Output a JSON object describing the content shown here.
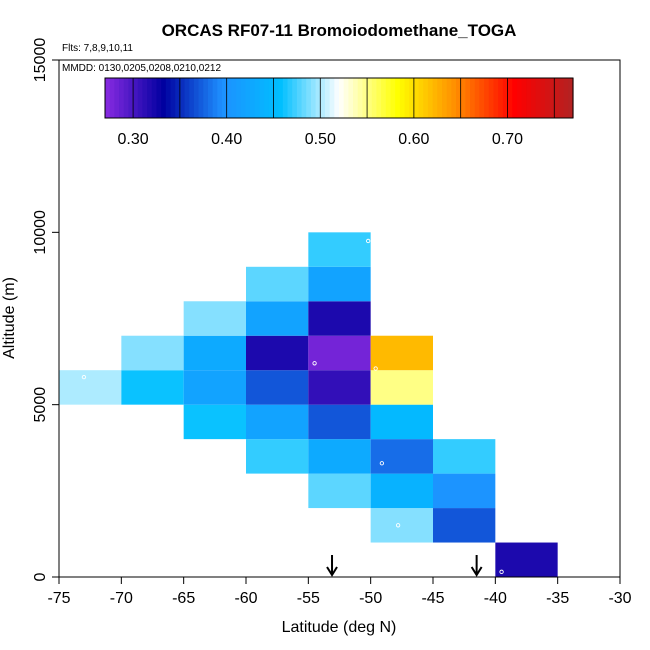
{
  "chart_data": {
    "type": "heatmap",
    "title": "ORCAS RF07-11 Bromoiodomethane_TOGA",
    "xlabel": "Latitude (deg N)",
    "ylabel": "Altitude (m)",
    "xlim": [
      -75,
      -30
    ],
    "ylim": [
      0,
      15000
    ],
    "x_ticks": [
      "-75",
      "-70",
      "-65",
      "-60",
      "-55",
      "-50",
      "-45",
      "-40",
      "-35",
      "-30"
    ],
    "y_ticks": [
      "0",
      "5000",
      "10000",
      "15000"
    ],
    "flights_note": "Flts: 7,8,9,10,11",
    "dates_note": "MMDD: 0130,0205,0208,0210,0212",
    "colorbar": {
      "range": [
        0.27,
        0.77
      ],
      "tick_labels": [
        "0.30",
        "0.40",
        "0.50",
        "0.60",
        "0.70"
      ],
      "tick_values": [
        0.3,
        0.4,
        0.5,
        0.6,
        0.7
      ],
      "stops": [
        "#8a2be2",
        "#0000a0",
        "#1e90ff",
        "#00bfff",
        "#ffffff",
        "#ffff00",
        "#ff8c00",
        "#ff0000",
        "#b22222"
      ]
    },
    "cells": [
      {
        "lat_min": -75,
        "lat_max": -70,
        "alt_min": 5000,
        "alt_max": 6000,
        "value": 0.5
      },
      {
        "lat_min": -70,
        "lat_max": -65,
        "alt_min": 5000,
        "alt_max": 6000,
        "value": 0.46
      },
      {
        "lat_min": -70,
        "lat_max": -65,
        "alt_min": 6000,
        "alt_max": 7000,
        "value": 0.49
      },
      {
        "lat_min": -65,
        "lat_max": -60,
        "alt_min": 4000,
        "alt_max": 5000,
        "value": 0.46
      },
      {
        "lat_min": -65,
        "lat_max": -60,
        "alt_min": 5000,
        "alt_max": 6000,
        "value": 0.42
      },
      {
        "lat_min": -65,
        "lat_max": -60,
        "alt_min": 6000,
        "alt_max": 7000,
        "value": 0.43
      },
      {
        "lat_min": -65,
        "lat_max": -60,
        "alt_min": 7000,
        "alt_max": 8000,
        "value": 0.49
      },
      {
        "lat_min": -60,
        "lat_max": -55,
        "alt_min": 3000,
        "alt_max": 4000,
        "value": 0.47
      },
      {
        "lat_min": -60,
        "lat_max": -55,
        "alt_min": 4000,
        "alt_max": 5000,
        "value": 0.42
      },
      {
        "lat_min": -60,
        "lat_max": -55,
        "alt_min": 5000,
        "alt_max": 6000,
        "value": 0.37
      },
      {
        "lat_min": -60,
        "lat_max": -55,
        "alt_min": 6000,
        "alt_max": 7000,
        "value": 0.32
      },
      {
        "lat_min": -60,
        "lat_max": -55,
        "alt_min": 7000,
        "alt_max": 8000,
        "value": 0.42
      },
      {
        "lat_min": -60,
        "lat_max": -55,
        "alt_min": 8000,
        "alt_max": 9000,
        "value": 0.48
      },
      {
        "lat_min": -55,
        "lat_max": -50,
        "alt_min": 2000,
        "alt_max": 3000,
        "value": 0.48
      },
      {
        "lat_min": -55,
        "lat_max": -50,
        "alt_min": 3000,
        "alt_max": 4000,
        "value": 0.43
      },
      {
        "lat_min": -55,
        "lat_max": -50,
        "alt_min": 4000,
        "alt_max": 5000,
        "value": 0.37
      },
      {
        "lat_min": -55,
        "lat_max": -50,
        "alt_min": 5000,
        "alt_max": 6000,
        "value": 0.31
      },
      {
        "lat_min": -55,
        "lat_max": -50,
        "alt_min": 6000,
        "alt_max": 7000,
        "value": 0.28
      },
      {
        "lat_min": -55,
        "lat_max": -50,
        "alt_min": 7000,
        "alt_max": 8000,
        "value": 0.32
      },
      {
        "lat_min": -55,
        "lat_max": -50,
        "alt_min": 8000,
        "alt_max": 9000,
        "value": 0.42
      },
      {
        "lat_min": -55,
        "lat_max": -50,
        "alt_min": 9000,
        "alt_max": 10000,
        "value": 0.47
      },
      {
        "lat_min": -50,
        "lat_max": -45,
        "alt_min": 1000,
        "alt_max": 2000,
        "value": 0.49
      },
      {
        "lat_min": -50,
        "lat_max": -45,
        "alt_min": 2000,
        "alt_max": 3000,
        "value": 0.44
      },
      {
        "lat_min": -50,
        "lat_max": -45,
        "alt_min": 3000,
        "alt_max": 4000,
        "value": 0.38
      },
      {
        "lat_min": -50,
        "lat_max": -45,
        "alt_min": 4000,
        "alt_max": 5000,
        "value": 0.45
      },
      {
        "lat_min": -50,
        "lat_max": -45,
        "alt_min": 5000,
        "alt_max": 6000,
        "value": 0.55
      },
      {
        "lat_min": -50,
        "lat_max": -45,
        "alt_min": 6000,
        "alt_max": 7000,
        "value": 0.62
      },
      {
        "lat_min": -45,
        "lat_max": -40,
        "alt_min": 1000,
        "alt_max": 2000,
        "value": 0.37
      },
      {
        "lat_min": -45,
        "lat_max": -40,
        "alt_min": 2000,
        "alt_max": 3000,
        "value": 0.4
      },
      {
        "lat_min": -45,
        "lat_max": -40,
        "alt_min": 3000,
        "alt_max": 4000,
        "value": 0.47
      },
      {
        "lat_min": -40,
        "lat_max": -35,
        "alt_min": 0,
        "alt_max": 1000,
        "value": 0.32
      }
    ],
    "sample_points": [
      {
        "lat": -73.0,
        "alt": 5800
      },
      {
        "lat": -50.2,
        "alt": 9750
      },
      {
        "lat": -54.5,
        "alt": 6200
      },
      {
        "lat": -49.6,
        "alt": 6050
      },
      {
        "lat": -49.1,
        "alt": 3300
      },
      {
        "lat": -47.8,
        "alt": 1500
      },
      {
        "lat": -39.5,
        "alt": 150
      }
    ],
    "arrows": [
      {
        "lat": -53.1,
        "label": "down-arrow"
      },
      {
        "lat": -41.5,
        "label": "down-arrow"
      }
    ]
  }
}
